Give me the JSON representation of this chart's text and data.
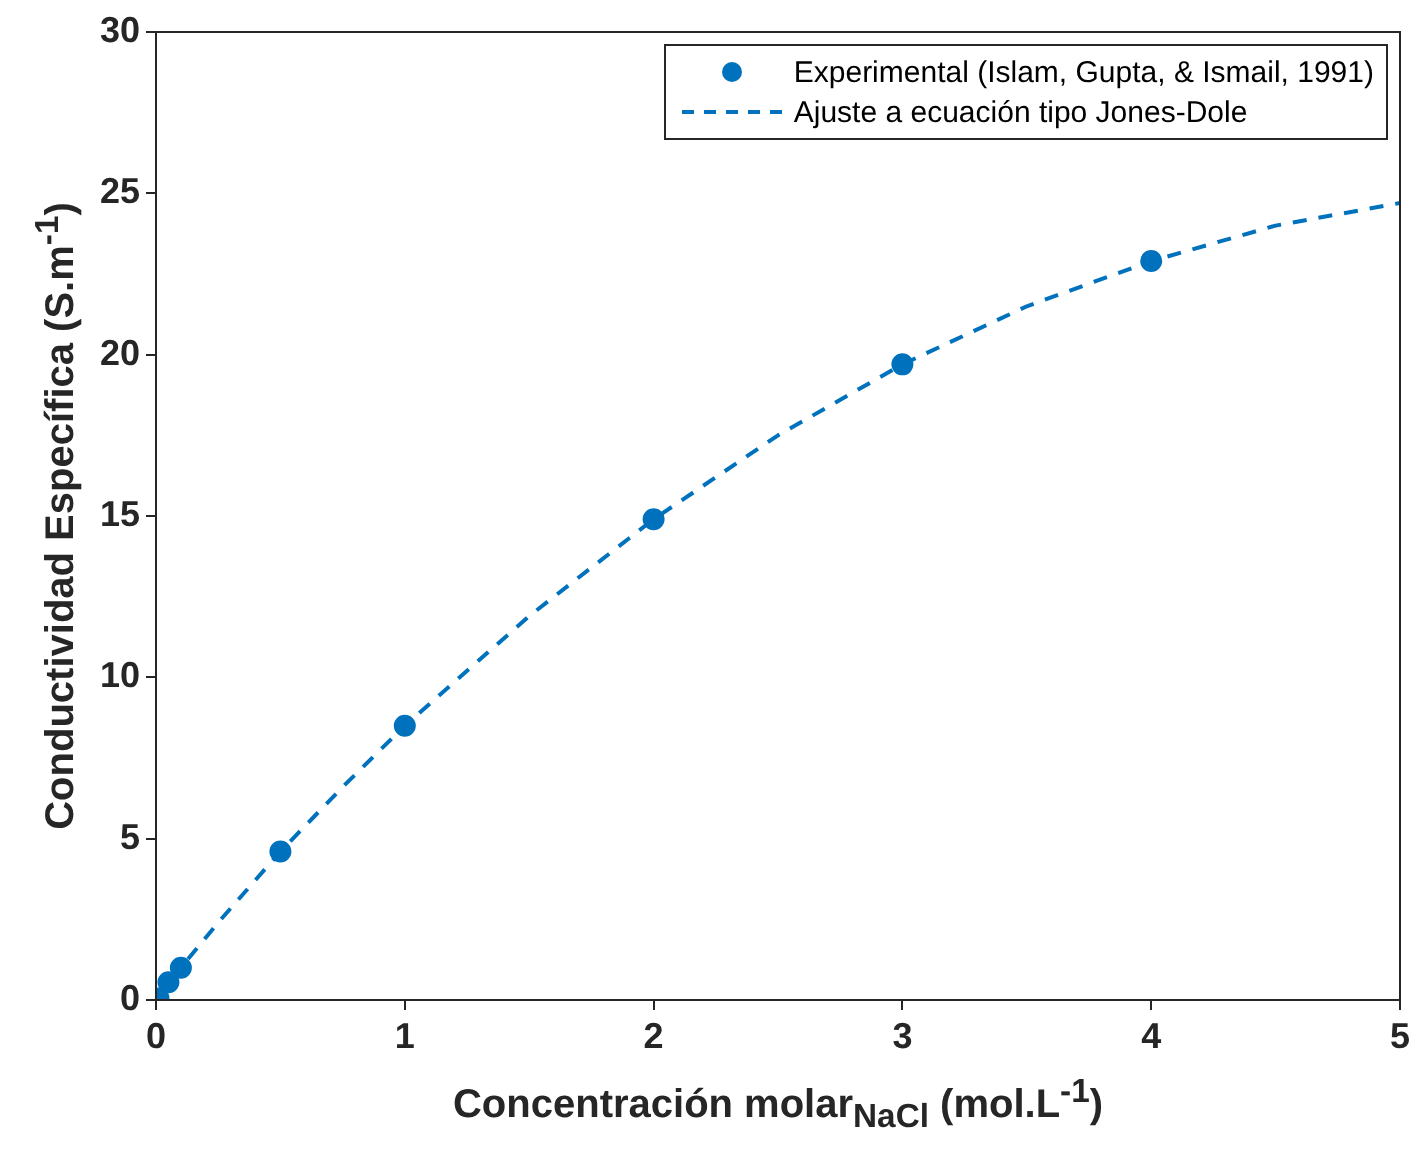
{
  "chart_data": {
    "type": "scatter",
    "xlabel": "Concentración molar$_{NaCl}$ (mol.L$^{-1}$)",
    "ylabel": "Conductividad Específica (S.m$^{-1}$)",
    "xlim": [
      0,
      5
    ],
    "xticks": [
      0,
      1,
      2,
      3,
      4,
      5
    ],
    "ylim": [
      0,
      30
    ],
    "yticks": [
      0,
      5,
      10,
      15,
      20,
      25,
      30
    ],
    "grid": false,
    "legend": "top right",
    "series": [
      {
        "name": "Experimental (Islam, Gupta, & Ismail, 1991)",
        "marker": "circle",
        "color": "#0072bd",
        "x": [
          0.01,
          0.05,
          0.1,
          0.5,
          1,
          2,
          3,
          4
        ],
        "values": [
          0.05,
          0.55,
          1.0,
          4.6,
          8.5,
          14.9,
          19.7,
          22.9
        ]
      },
      {
        "name": "Ajuste a ecuación tipo Jones-Dole",
        "type": "line",
        "marker": "none",
        "line_style": "dashed",
        "color": "#0072bd",
        "x": [
          0,
          0.1,
          0.25,
          0.5,
          0.75,
          1,
          1.5,
          2,
          2.5,
          3,
          3.5,
          4,
          4.5,
          5
        ],
        "values": [
          0,
          1.0,
          2.4,
          4.6,
          6.6,
          8.5,
          11.9,
          14.9,
          17.5,
          19.7,
          21.5,
          22.9,
          24.0,
          24.7
        ]
      }
    ]
  }
}
